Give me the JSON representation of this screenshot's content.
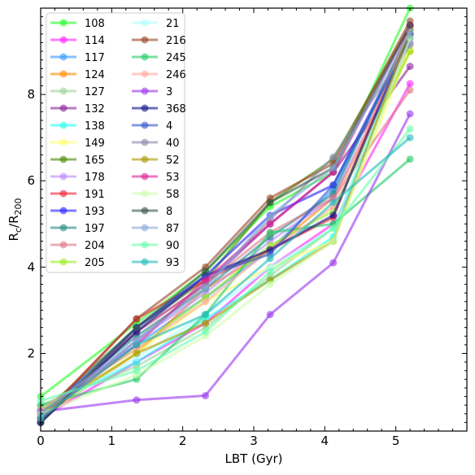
{
  "chart_data": {
    "type": "line",
    "xlabel": "LBT (Gyr)",
    "ylabel": "R",
    "ylabel_sub1": "c",
    "ylabel_mid": "/R",
    "ylabel_sub2": "200",
    "xlim": [
      0,
      6.0
    ],
    "ylim": [
      0.2,
      10.0
    ],
    "xticks": [
      0,
      1,
      2,
      3,
      4,
      5
    ],
    "yticks": [
      2,
      4,
      6,
      8
    ],
    "legend_placement": "top-left",
    "x": [
      0,
      1.35,
      2.32,
      3.23,
      4.12,
      5.2
    ],
    "series": [
      {
        "name": "108",
        "color": "#22ff22",
        "values": [
          1.0,
          2.7,
          3.9,
          5.4,
          6.2,
          10.0
        ]
      },
      {
        "name": "114",
        "color": "#ff22ff",
        "values": [
          0.5,
          1.8,
          2.7,
          4.0,
          5.0,
          8.25
        ]
      },
      {
        "name": "117",
        "color": "#3399ff",
        "values": [
          0.7,
          2.2,
          3.3,
          4.4,
          5.8,
          9.3
        ]
      },
      {
        "name": "124",
        "color": "#ff8800",
        "values": [
          0.5,
          2.0,
          3.5,
          4.4,
          5.6,
          9.0
        ]
      },
      {
        "name": "127",
        "color": "#99d699",
        "values": [
          0.8,
          1.7,
          2.6,
          3.8,
          4.9,
          9.2
        ]
      },
      {
        "name": "132",
        "color": "#882299",
        "values": [
          0.4,
          2.5,
          3.6,
          5.0,
          6.2,
          8.65
        ]
      },
      {
        "name": "138",
        "color": "#22ffee",
        "values": [
          0.7,
          1.8,
          2.8,
          3.7,
          4.7,
          9.6
        ]
      },
      {
        "name": "149",
        "color": "#ffff66",
        "values": [
          0.6,
          2.0,
          3.2,
          4.0,
          4.6,
          9.1
        ]
      },
      {
        "name": "165",
        "color": "#448800",
        "values": [
          0.6,
          2.6,
          3.7,
          5.5,
          6.5,
          9.6
        ]
      },
      {
        "name": "178",
        "color": "#bb88ff",
        "values": [
          0.5,
          2.3,
          3.4,
          4.6,
          5.6,
          9.2
        ]
      },
      {
        "name": "191",
        "color": "#ee2233",
        "values": [
          0.5,
          2.8,
          3.7,
          4.4,
          5.15,
          9.6
        ]
      },
      {
        "name": "193",
        "color": "#2222ff",
        "values": [
          0.4,
          2.6,
          3.8,
          5.2,
          5.9,
          9.4
        ]
      },
      {
        "name": "197",
        "color": "#228888",
        "values": [
          0.6,
          2.4,
          3.5,
          4.7,
          5.7,
          9.5
        ]
      },
      {
        "name": "204",
        "color": "#dd7788",
        "values": [
          0.5,
          2.5,
          3.6,
          4.8,
          5.6,
          8.1
        ]
      },
      {
        "name": "205",
        "color": "#99ee22",
        "values": [
          0.7,
          2.1,
          3.3,
          4.5,
          5.3,
          9.0
        ]
      },
      {
        "name": "21",
        "color": "#aaffff",
        "values": [
          0.6,
          1.9,
          2.9,
          4.0,
          4.9,
          9.4
        ]
      },
      {
        "name": "216",
        "color": "#994422",
        "values": [
          0.5,
          2.8,
          4.0,
          5.6,
          6.4,
          9.7
        ]
      },
      {
        "name": "245",
        "color": "#22cc66",
        "values": [
          0.8,
          1.4,
          2.9,
          4.8,
          5.0,
          6.5
        ]
      },
      {
        "name": "246",
        "color": "#ffaa99",
        "values": [
          0.7,
          2.1,
          3.2,
          4.4,
          5.4,
          9.5
        ]
      },
      {
        "name": "3",
        "color": "#9933ee",
        "values": [
          0.65,
          0.92,
          1.02,
          2.9,
          4.1,
          7.55
        ]
      },
      {
        "name": "368",
        "color": "#111188",
        "values": [
          0.4,
          2.5,
          3.8,
          4.4,
          5.2,
          9.4
        ]
      },
      {
        "name": "4",
        "color": "#3355cc",
        "values": [
          0.5,
          2.6,
          3.8,
          4.3,
          5.9,
          9.3
        ]
      },
      {
        "name": "40",
        "color": "#8888aa",
        "values": [
          0.5,
          2.3,
          3.6,
          5.1,
          6.55,
          9.15
        ]
      },
      {
        "name": "52",
        "color": "#aa9900",
        "values": [
          0.6,
          2.0,
          2.7,
          3.7,
          4.6,
          9.5
        ]
      },
      {
        "name": "53",
        "color": "#dd2299",
        "values": [
          0.5,
          2.2,
          3.7,
          5.0,
          6.2,
          9.6
        ]
      },
      {
        "name": "58",
        "color": "#ccffaa",
        "values": [
          0.6,
          1.5,
          2.4,
          3.6,
          4.6,
          9.3
        ]
      },
      {
        "name": "8",
        "color": "#335544",
        "values": [
          0.4,
          2.6,
          3.9,
          5.5,
          6.3,
          9.6
        ]
      },
      {
        "name": "87",
        "color": "#88aadd",
        "values": [
          0.6,
          2.3,
          3.5,
          5.2,
          6.3,
          9.45
        ]
      },
      {
        "name": "90",
        "color": "#66ffaa",
        "values": [
          0.9,
          1.6,
          2.5,
          3.9,
          4.9,
          7.2
        ]
      },
      {
        "name": "93",
        "color": "#22bbbb",
        "values": [
          0.5,
          2.2,
          2.9,
          4.2,
          5.5,
          7.0
        ]
      }
    ]
  }
}
